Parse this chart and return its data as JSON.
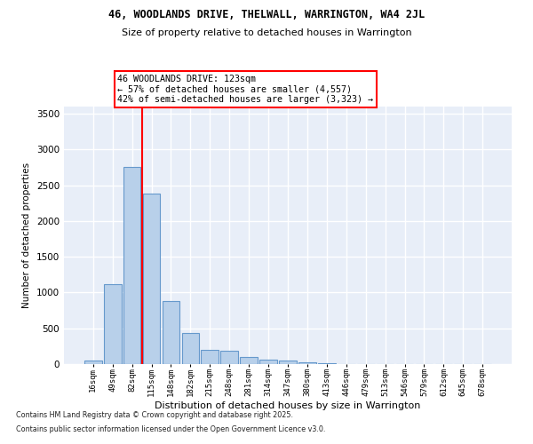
{
  "title1": "46, WOODLANDS DRIVE, THELWALL, WARRINGTON, WA4 2JL",
  "title2": "Size of property relative to detached houses in Warrington",
  "xlabel": "Distribution of detached houses by size in Warrington",
  "ylabel": "Number of detached properties",
  "categories": [
    "16sqm",
    "49sqm",
    "82sqm",
    "115sqm",
    "148sqm",
    "182sqm",
    "215sqm",
    "248sqm",
    "281sqm",
    "314sqm",
    "347sqm",
    "380sqm",
    "413sqm",
    "446sqm",
    "479sqm",
    "513sqm",
    "546sqm",
    "579sqm",
    "612sqm",
    "645sqm",
    "678sqm"
  ],
  "values": [
    55,
    1120,
    2750,
    2380,
    880,
    430,
    195,
    190,
    100,
    60,
    50,
    20,
    10,
    5,
    5,
    3,
    2,
    1,
    1,
    1,
    1
  ],
  "bar_color": "#b8d0ea",
  "bar_edge_color": "#6699cc",
  "vline_color": "red",
  "vline_index": 2.5,
  "annotation_text": "46 WOODLANDS DRIVE: 123sqm\n← 57% of detached houses are smaller (4,557)\n42% of semi-detached houses are larger (3,323) →",
  "annotation_box_color": "white",
  "annotation_box_edge": "red",
  "ylim": [
    0,
    3600
  ],
  "yticks": [
    0,
    500,
    1000,
    1500,
    2000,
    2500,
    3000,
    3500
  ],
  "bg_color": "#e8eef8",
  "grid_color": "white",
  "footer1": "Contains HM Land Registry data © Crown copyright and database right 2025.",
  "footer2": "Contains public sector information licensed under the Open Government Licence v3.0."
}
